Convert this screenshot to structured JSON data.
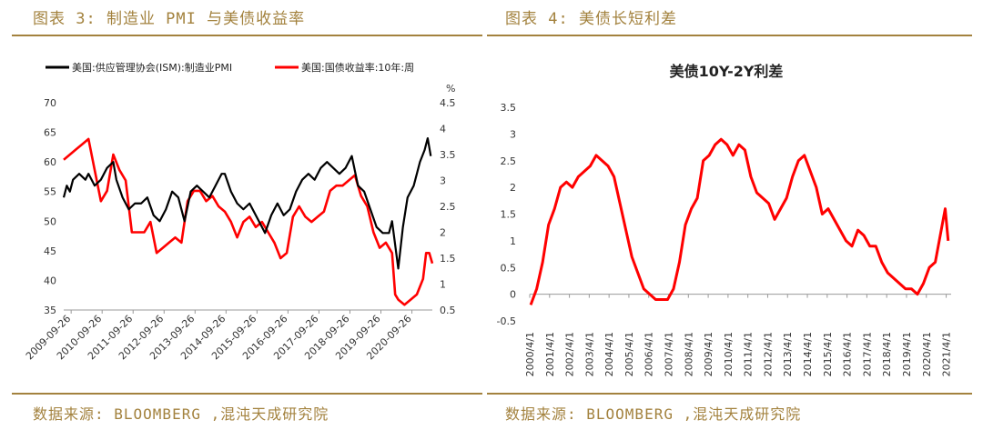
{
  "left": {
    "header": "图表 3: 制造业 PMI 与美债收益率",
    "source": "数据来源: BLOOMBERG ,混沌天成研究院"
  },
  "right": {
    "header": "图表 4: 美债长短利差",
    "source": "数据来源: BLOOMBERG ,混沌天成研究院"
  },
  "chart_data": [
    {
      "type": "line",
      "title": "",
      "y_unit_label": "%",
      "legend": [
        "美国:供应管理协会(ISM):制造业PMI",
        "美国:国债收益率:10年:周"
      ],
      "x_ticks": [
        "2009-09-26",
        "2010-09-26",
        "2011-09-26",
        "2012-09-26",
        "2013-09-26",
        "2014-09-26",
        "2015-09-26",
        "2016-09-26",
        "2017-09-26",
        "2018-09-26",
        "2019-09-26",
        "2020-09-26"
      ],
      "y_left_ticks": [
        "70",
        "65",
        "60",
        "55",
        "50",
        "45",
        "40",
        "35"
      ],
      "y_right_ticks": [
        "4.5",
        "4",
        "3.5",
        "3",
        "2.5",
        "2",
        "1.5",
        "1",
        "0.5"
      ],
      "y_left_lim": [
        35,
        70
      ],
      "y_right_lim": [
        0.5,
        4.5
      ],
      "x_lim": [
        2009.5,
        2021.4
      ],
      "series": [
        {
          "name": "美国:供应管理协会(ISM):制造业PMI",
          "axis": "left",
          "color": "#000000",
          "x": [
            2009.5,
            2009.6,
            2009.7,
            2009.8,
            2010.0,
            2010.2,
            2010.3,
            2010.5,
            2010.7,
            2010.9,
            2011.1,
            2011.2,
            2011.4,
            2011.6,
            2011.8,
            2012.0,
            2012.2,
            2012.4,
            2012.6,
            2012.8,
            2013.0,
            2013.2,
            2013.4,
            2013.6,
            2013.8,
            2014.0,
            2014.2,
            2014.4,
            2014.6,
            2014.7,
            2014.9,
            2015.1,
            2015.3,
            2015.5,
            2015.7,
            2015.9,
            2016.0,
            2016.2,
            2016.4,
            2016.6,
            2016.8,
            2017.0,
            2017.2,
            2017.4,
            2017.6,
            2017.8,
            2018.0,
            2018.2,
            2018.4,
            2018.6,
            2018.8,
            2019.0,
            2019.2,
            2019.4,
            2019.6,
            2019.8,
            2020.0,
            2020.1,
            2020.3,
            2020.45,
            2020.6,
            2020.8,
            2021.0,
            2021.15,
            2021.25,
            2021.35
          ],
          "values": [
            54,
            56,
            55,
            57,
            58,
            57,
            58,
            56,
            57,
            59,
            60,
            57,
            54,
            52,
            53,
            53,
            54,
            51,
            50,
            52,
            55,
            54,
            50,
            55,
            56,
            55,
            54,
            56,
            58,
            58,
            55,
            53,
            52,
            53,
            51,
            49,
            48,
            51,
            53,
            51,
            52,
            55,
            57,
            58,
            57,
            59,
            60,
            59,
            58,
            59,
            61,
            56,
            55,
            52,
            49,
            48,
            48,
            50,
            42,
            49,
            54,
            56,
            60,
            62,
            64,
            61
          ]
        },
        {
          "name": "美国:国债收益率:10年:周",
          "axis": "right",
          "color": "#ff0000",
          "x": [
            2009.5,
            2009.7,
            2009.9,
            2010.1,
            2010.3,
            2010.5,
            2010.7,
            2010.9,
            2011.1,
            2011.3,
            2011.5,
            2011.7,
            2011.9,
            2012.1,
            2012.3,
            2012.5,
            2012.7,
            2012.9,
            2013.1,
            2013.3,
            2013.5,
            2013.7,
            2013.9,
            2014.1,
            2014.3,
            2014.5,
            2014.7,
            2014.9,
            2015.1,
            2015.3,
            2015.5,
            2015.7,
            2015.9,
            2016.1,
            2016.3,
            2016.5,
            2016.7,
            2016.9,
            2017.1,
            2017.3,
            2017.5,
            2017.7,
            2017.9,
            2018.1,
            2018.3,
            2018.5,
            2018.7,
            2018.9,
            2019.1,
            2019.3,
            2019.5,
            2019.7,
            2019.9,
            2020.1,
            2020.2,
            2020.3,
            2020.5,
            2020.7,
            2020.9,
            2021.1,
            2021.2,
            2021.3,
            2021.4
          ],
          "values": [
            3.4,
            3.5,
            3.6,
            3.7,
            3.8,
            3.2,
            2.6,
            2.8,
            3.5,
            3.2,
            3.0,
            2.0,
            2.0,
            2.0,
            2.2,
            1.6,
            1.7,
            1.8,
            1.9,
            1.8,
            2.6,
            2.8,
            2.8,
            2.6,
            2.7,
            2.5,
            2.4,
            2.2,
            1.9,
            2.2,
            2.3,
            2.1,
            2.2,
            2.0,
            1.8,
            1.5,
            1.6,
            2.3,
            2.5,
            2.3,
            2.2,
            2.3,
            2.4,
            2.8,
            2.9,
            2.9,
            3.0,
            3.1,
            2.7,
            2.5,
            2.0,
            1.7,
            1.8,
            1.6,
            0.8,
            0.7,
            0.6,
            0.7,
            0.8,
            1.1,
            1.6,
            1.6,
            1.4
          ]
        }
      ]
    },
    {
      "type": "line",
      "title": "美债10Y-2Y利差",
      "x_ticks": [
        "2000/4/1",
        "2001/4/1",
        "2002/4/1",
        "2003/4/1",
        "2004/4/1",
        "2005/4/1",
        "2006/4/1",
        "2007/4/1",
        "2008/4/1",
        "2009/4/1",
        "2010/4/1",
        "2011/4/1",
        "2012/4/1",
        "2013/4/1",
        "2014/4/1",
        "2015/4/1",
        "2016/4/1",
        "2017/4/1",
        "2018/4/1",
        "2019/4/1",
        "2020/4/1",
        "2021/4/1"
      ],
      "y_ticks": [
        "3.5",
        "3",
        "2.5",
        "2",
        "1.5",
        "1",
        "0.5",
        "0",
        "-0.5"
      ],
      "ylim": [
        -0.5,
        3.5
      ],
      "x_lim": [
        2000.25,
        2021.5
      ],
      "series": [
        {
          "name": "",
          "color": "#ff0000",
          "x": [
            2000.3,
            2000.6,
            2000.9,
            2001.2,
            2001.5,
            2001.8,
            2002.1,
            2002.4,
            2002.7,
            2003.0,
            2003.3,
            2003.6,
            2003.9,
            2004.2,
            2004.5,
            2004.8,
            2005.1,
            2005.4,
            2005.7,
            2006.0,
            2006.3,
            2006.6,
            2006.9,
            2007.2,
            2007.5,
            2007.8,
            2008.1,
            2008.4,
            2008.7,
            2009.0,
            2009.3,
            2009.6,
            2009.9,
            2010.2,
            2010.5,
            2010.8,
            2011.1,
            2011.4,
            2011.7,
            2012.0,
            2012.3,
            2012.6,
            2012.9,
            2013.2,
            2013.5,
            2013.8,
            2014.1,
            2014.4,
            2014.7,
            2015.0,
            2015.3,
            2015.6,
            2015.9,
            2016.2,
            2016.5,
            2016.8,
            2017.1,
            2017.4,
            2017.7,
            2018.0,
            2018.3,
            2018.6,
            2018.9,
            2019.2,
            2019.5,
            2019.8,
            2020.1,
            2020.4,
            2020.7,
            2021.0,
            2021.2,
            2021.35
          ],
          "values": [
            -0.2,
            0.1,
            0.6,
            1.3,
            1.6,
            2.0,
            2.1,
            2.0,
            2.2,
            2.3,
            2.4,
            2.6,
            2.5,
            2.4,
            2.2,
            1.7,
            1.2,
            0.7,
            0.4,
            0.1,
            0.0,
            -0.1,
            -0.1,
            -0.1,
            0.1,
            0.6,
            1.3,
            1.6,
            1.8,
            2.5,
            2.6,
            2.8,
            2.9,
            2.8,
            2.6,
            2.8,
            2.7,
            2.2,
            1.9,
            1.8,
            1.7,
            1.4,
            1.6,
            1.8,
            2.2,
            2.5,
            2.6,
            2.3,
            2.0,
            1.5,
            1.6,
            1.4,
            1.2,
            1.0,
            0.9,
            1.2,
            1.1,
            0.9,
            0.9,
            0.6,
            0.4,
            0.3,
            0.2,
            0.1,
            0.1,
            0.0,
            0.2,
            0.5,
            0.6,
            1.2,
            1.6,
            1.0
          ]
        }
      ]
    }
  ]
}
